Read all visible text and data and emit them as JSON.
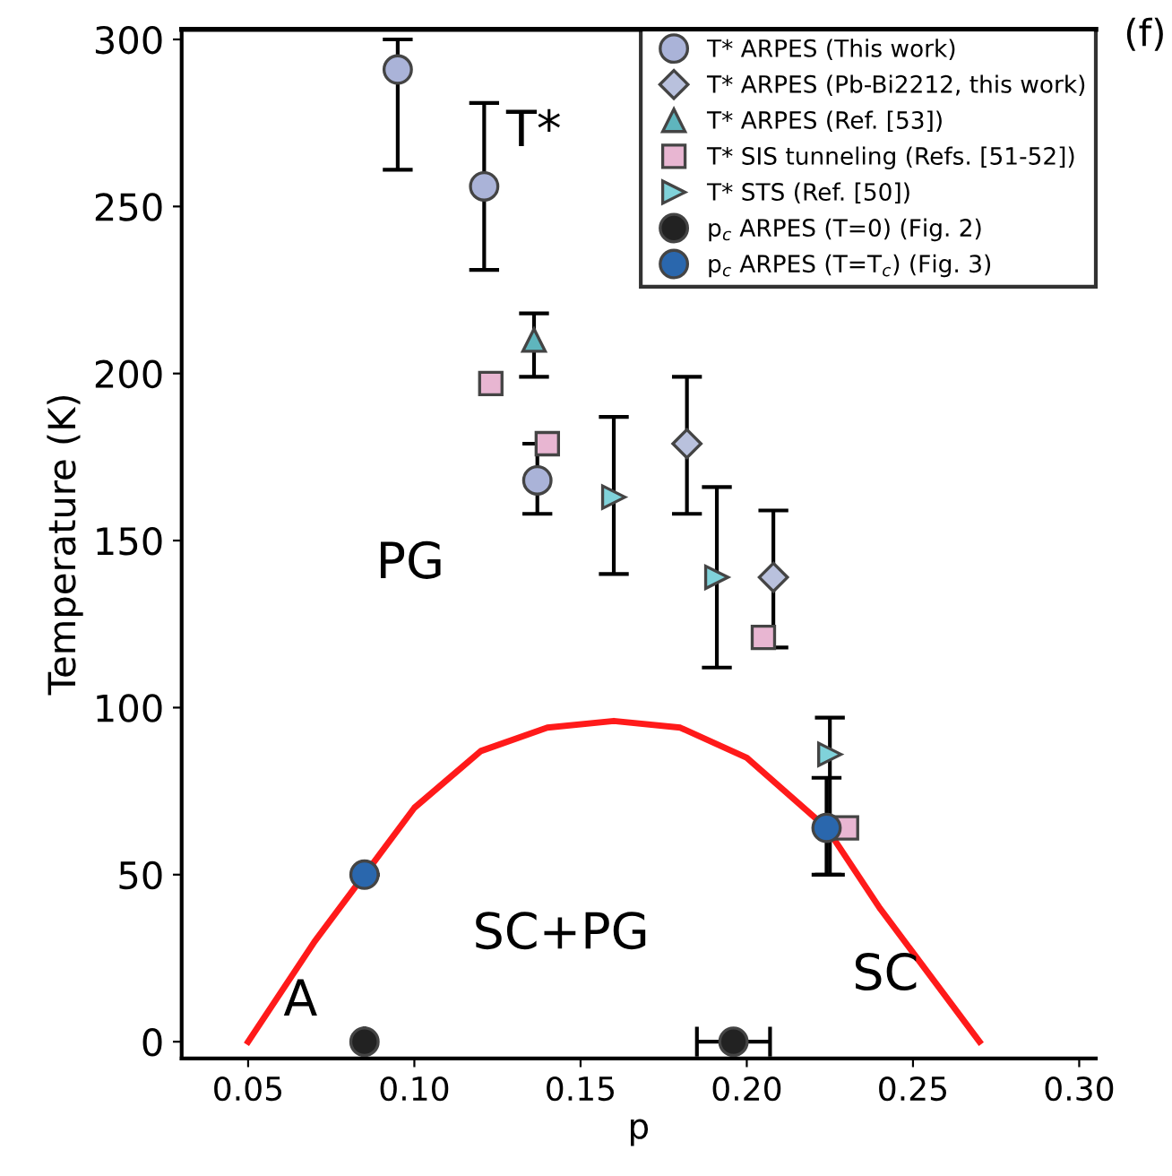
{
  "chart_data": {
    "type": "scatter",
    "xlabel": "p",
    "ylabel": "Temperature (K)",
    "xlim": [
      0.03,
      0.305
    ],
    "ylim": [
      -5,
      303
    ],
    "xticks": [
      {
        "value": 0.05,
        "label": "0.05"
      },
      {
        "value": 0.1,
        "label": "0.10"
      },
      {
        "value": 0.15,
        "label": "0.15"
      },
      {
        "value": 0.2,
        "label": "0.20"
      },
      {
        "value": 0.25,
        "label": "0.25"
      },
      {
        "value": 0.3,
        "label": "0.30"
      }
    ],
    "yticks": [
      0,
      50,
      100,
      150,
      200,
      250,
      300
    ],
    "grid": false,
    "legend": "top right",
    "series": [
      {
        "type": "line",
        "color": "#ff1a1a",
        "marker": "none",
        "line_style": "solid",
        "x": [
          0.05,
          0.07,
          0.085,
          0.1,
          0.12,
          0.14,
          0.16,
          0.18,
          0.2,
          0.224,
          0.24,
          0.255,
          0.27
        ],
        "values": [
          0,
          30,
          50,
          70,
          87,
          94,
          96,
          94,
          85,
          64,
          40,
          20,
          0
        ]
      },
      {
        "name": "T* ARPES (This work)",
        "color": "#aab3d8",
        "marker": "circle",
        "x": [
          0.095,
          0.121,
          0.137
        ],
        "values": [
          291,
          256,
          168
        ],
        "errors": [
          [
            261,
            300
          ],
          [
            231,
            281
          ],
          [
            158,
            179
          ]
        ]
      },
      {
        "name": "T* ARPES (Pb-Bi2212, this work)",
        "color": "#b9c1dd",
        "marker": "diamond",
        "x": [
          0.182,
          0.208
        ],
        "values": [
          179,
          139
        ],
        "errors": [
          [
            158,
            199
          ],
          [
            118,
            159
          ]
        ]
      },
      {
        "name": "T* ARPES (Ref. [53])",
        "color": "#5fb5bd",
        "marker": "triangle",
        "x": [
          0.136
        ],
        "values": [
          210
        ],
        "errors": [
          [
            199,
            218
          ]
        ]
      },
      {
        "name": "T* SIS tunneling (Refs. [51-52])",
        "color": "#e8b6d2",
        "marker": "square",
        "x": [
          0.123,
          0.14,
          0.205,
          0.23
        ],
        "values": [
          197,
          179,
          121,
          64
        ]
      },
      {
        "name": "T* STS (Ref. [50])",
        "color": "#80d2da",
        "marker": "triangle_right",
        "x": [
          0.16,
          0.191,
          0.225
        ],
        "values": [
          163,
          139,
          86
        ],
        "errors": [
          [
            140,
            187
          ],
          [
            112,
            166
          ],
          [
            50,
            97
          ]
        ]
      },
      {
        "name": "p$_{c}$ ARPES (T=0) (Fig. 2)",
        "color": "#222222",
        "marker": "circle",
        "x": [
          0.085,
          0.196
        ],
        "values": [
          0,
          0
        ],
        "xerrors": [
          null,
          [
            0.185,
            0.207
          ]
        ]
      },
      {
        "name": "p$_{c}$ ARPES (T=T$_{c}$) (Fig. 3)",
        "color": "#2a67ad",
        "marker": "circle",
        "x": [
          0.085,
          0.224
        ],
        "values": [
          50,
          64
        ],
        "errors": [
          null,
          [
            50,
            79
          ]
        ]
      }
    ],
    "annotations": [
      "T*",
      "PG",
      "SC+PG",
      "SC",
      "A",
      "(f)"
    ]
  }
}
